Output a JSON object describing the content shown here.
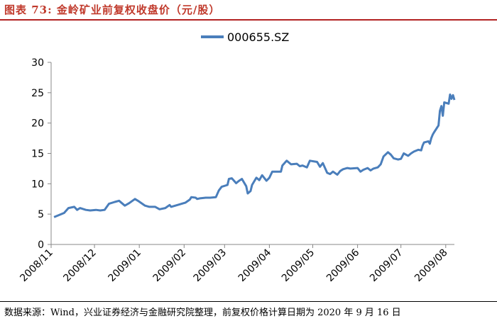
{
  "title": "图表 73: 金岭矿业前复权收盘价（元/股）",
  "source": "数据来源：Wind，兴业证券经济与金融研究院整理，前复权价格计算日期为 2020 年 9 月 16 日",
  "chart_data": {
    "type": "line",
    "title": "",
    "xlabel": "",
    "ylabel": "",
    "ylim": [
      0,
      30
    ],
    "yticks": [
      0,
      5,
      10,
      15,
      20,
      25,
      30
    ],
    "xtick_labels": [
      "2008/11",
      "2008/12",
      "2009/01",
      "2009/02",
      "2009/03",
      "2009/04",
      "2009/05",
      "2009/06",
      "2009/07",
      "2009/08"
    ],
    "xtick_dates": [
      "2008-11-01",
      "2008-12-01",
      "2009-01-01",
      "2009-02-01",
      "2009-03-01",
      "2009-04-01",
      "2009-05-01",
      "2009-06-01",
      "2009-07-01",
      "2009-08-01"
    ],
    "x_range": [
      "2008-11-01",
      "2009-08-07"
    ],
    "grid": false,
    "legend_position": "top-center",
    "series": [
      {
        "name": "000655.SZ",
        "color": "#4a7ebb",
        "points": [
          [
            "2008-11-03",
            4.5
          ],
          [
            "2008-11-06",
            4.8
          ],
          [
            "2008-11-10",
            5.2
          ],
          [
            "2008-11-13",
            6.0
          ],
          [
            "2008-11-17",
            6.2
          ],
          [
            "2008-11-19",
            5.7
          ],
          [
            "2008-11-21",
            6.0
          ],
          [
            "2008-11-25",
            5.7
          ],
          [
            "2008-11-28",
            5.6
          ],
          [
            "2008-12-02",
            5.7
          ],
          [
            "2008-12-05",
            5.6
          ],
          [
            "2008-12-08",
            5.7
          ],
          [
            "2008-12-11",
            6.7
          ],
          [
            "2008-12-15",
            7.0
          ],
          [
            "2008-12-18",
            7.2
          ],
          [
            "2008-12-22",
            6.4
          ],
          [
            "2008-12-25",
            6.8
          ],
          [
            "2008-12-29",
            7.5
          ],
          [
            "2008-12-31",
            7.2
          ],
          [
            "2009-01-05",
            6.4
          ],
          [
            "2009-01-08",
            6.2
          ],
          [
            "2009-01-12",
            6.2
          ],
          [
            "2009-01-15",
            5.8
          ],
          [
            "2009-01-19",
            6.0
          ],
          [
            "2009-01-22",
            6.5
          ],
          [
            "2009-01-23",
            6.2
          ],
          [
            "2009-02-02",
            6.9
          ],
          [
            "2009-02-05",
            7.4
          ],
          [
            "2009-02-06",
            7.8
          ],
          [
            "2009-02-09",
            7.7
          ],
          [
            "2009-02-10",
            7.5
          ],
          [
            "2009-02-12",
            7.6
          ],
          [
            "2009-02-16",
            7.7
          ],
          [
            "2009-02-19",
            7.7
          ],
          [
            "2009-02-23",
            7.8
          ],
          [
            "2009-02-25",
            8.9
          ],
          [
            "2009-02-27",
            9.5
          ],
          [
            "2009-03-03",
            9.8
          ],
          [
            "2009-03-04",
            10.8
          ],
          [
            "2009-03-06",
            10.9
          ],
          [
            "2009-03-09",
            10.1
          ],
          [
            "2009-03-11",
            10.5
          ],
          [
            "2009-03-13",
            10.8
          ],
          [
            "2009-03-16",
            9.6
          ],
          [
            "2009-03-17",
            8.4
          ],
          [
            "2009-03-19",
            8.8
          ],
          [
            "2009-03-20",
            9.8
          ],
          [
            "2009-03-23",
            11.0
          ],
          [
            "2009-03-25",
            10.6
          ],
          [
            "2009-03-27",
            11.4
          ],
          [
            "2009-03-30",
            10.5
          ],
          [
            "2009-04-01",
            11.0
          ],
          [
            "2009-04-03",
            12.0
          ],
          [
            "2009-04-06",
            12.0
          ],
          [
            "2009-04-09",
            12.0
          ],
          [
            "2009-04-10",
            13.0
          ],
          [
            "2009-04-13",
            13.8
          ],
          [
            "2009-04-16",
            13.2
          ],
          [
            "2009-04-20",
            13.3
          ],
          [
            "2009-04-22",
            12.9
          ],
          [
            "2009-04-24",
            13.0
          ],
          [
            "2009-04-27",
            12.7
          ],
          [
            "2009-04-29",
            13.8
          ],
          [
            "2009-05-04",
            13.6
          ],
          [
            "2009-05-06",
            12.8
          ],
          [
            "2009-05-08",
            13.4
          ],
          [
            "2009-05-11",
            11.8
          ],
          [
            "2009-05-13",
            11.6
          ],
          [
            "2009-05-15",
            12.0
          ],
          [
            "2009-05-18",
            11.5
          ],
          [
            "2009-05-20",
            12.1
          ],
          [
            "2009-05-22",
            12.4
          ],
          [
            "2009-05-25",
            12.6
          ],
          [
            "2009-05-27",
            12.5
          ],
          [
            "2009-06-01",
            12.6
          ],
          [
            "2009-06-03",
            12.0
          ],
          [
            "2009-06-05",
            12.3
          ],
          [
            "2009-06-08",
            12.6
          ],
          [
            "2009-06-10",
            12.2
          ],
          [
            "2009-06-12",
            12.5
          ],
          [
            "2009-06-15",
            12.7
          ],
          [
            "2009-06-17",
            13.2
          ],
          [
            "2009-06-19",
            14.5
          ],
          [
            "2009-06-22",
            15.2
          ],
          [
            "2009-06-24",
            14.8
          ],
          [
            "2009-06-26",
            14.2
          ],
          [
            "2009-06-29",
            14.0
          ],
          [
            "2009-07-01",
            14.1
          ],
          [
            "2009-07-03",
            15.0
          ],
          [
            "2009-07-06",
            14.6
          ],
          [
            "2009-07-08",
            15.0
          ],
          [
            "2009-07-10",
            15.3
          ],
          [
            "2009-07-13",
            15.6
          ],
          [
            "2009-07-15",
            15.5
          ],
          [
            "2009-07-16",
            16.3
          ],
          [
            "2009-07-17",
            16.8
          ],
          [
            "2009-07-20",
            17.0
          ],
          [
            "2009-07-21",
            16.6
          ],
          [
            "2009-07-22",
            17.5
          ],
          [
            "2009-07-23",
            18.1
          ],
          [
            "2009-07-24",
            18.5
          ],
          [
            "2009-07-27",
            19.6
          ],
          [
            "2009-07-28",
            22.0
          ],
          [
            "2009-07-29",
            22.8
          ],
          [
            "2009-07-30",
            21.2
          ],
          [
            "2009-07-31",
            23.4
          ],
          [
            "2009-08-03",
            23.2
          ],
          [
            "2009-08-04",
            24.7
          ],
          [
            "2009-08-05",
            24.0
          ],
          [
            "2009-08-06",
            24.6
          ],
          [
            "2009-08-07",
            23.8
          ]
        ]
      }
    ]
  }
}
